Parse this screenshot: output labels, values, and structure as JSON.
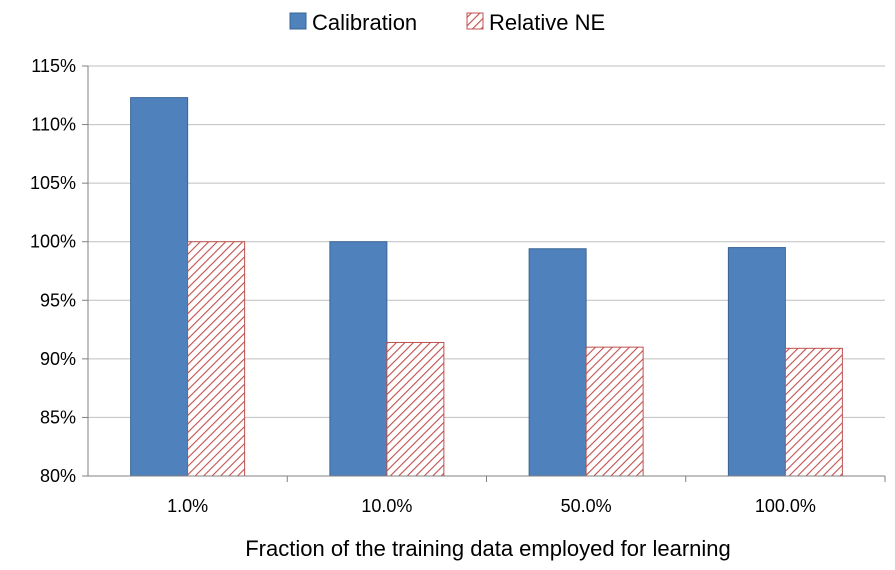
{
  "chart_data": {
    "type": "bar",
    "categories": [
      "1.0%",
      "10.0%",
      "50.0%",
      "100.0%"
    ],
    "series": [
      {
        "name": "Calibration",
        "values": [
          112.3,
          100.0,
          99.4,
          99.5
        ],
        "color": "#4F81BD",
        "pattern": "solid"
      },
      {
        "name": "Relative NE",
        "values": [
          100.0,
          91.4,
          91.0,
          90.9
        ],
        "color": "#C0504D",
        "pattern": "diagonal-hatch"
      }
    ],
    "xlabel": "Fraction of the training data employed for learning",
    "ylabel": "",
    "ylim": [
      80,
      115
    ],
    "yticks": [
      80,
      85,
      90,
      95,
      100,
      105,
      110,
      115
    ],
    "ytick_labels": [
      "80%",
      "85%",
      "90%",
      "95%",
      "100%",
      "105%",
      "110%",
      "115%"
    ],
    "grid": true,
    "legend": "top-center"
  }
}
